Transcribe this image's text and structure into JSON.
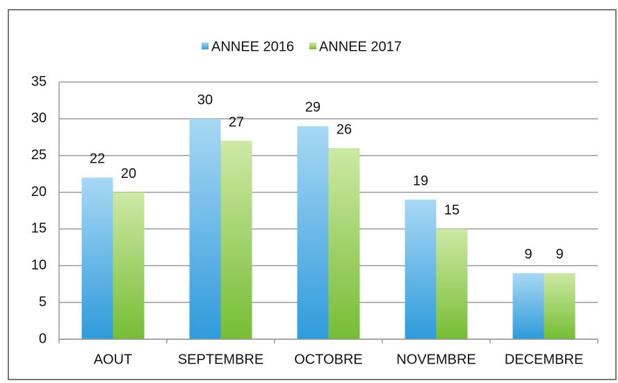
{
  "chart_data": {
    "type": "bar",
    "categories": [
      "AOUT",
      "SEPTEMBRE",
      "OCTOBRE",
      "NOVEMBRE",
      "DECEMBRE"
    ],
    "series": [
      {
        "name": "ANNEE 2016",
        "color": "#3fa3dd",
        "values": [
          22,
          30,
          29,
          19,
          9
        ]
      },
      {
        "name": "ANNEE 2017",
        "color": "#86c440",
        "values": [
          20,
          27,
          26,
          15,
          9
        ]
      }
    ],
    "ylim": [
      0,
      35
    ],
    "yticks": [
      0,
      5,
      10,
      15,
      20,
      25,
      30,
      35
    ],
    "grid": true,
    "legend": "top"
  }
}
